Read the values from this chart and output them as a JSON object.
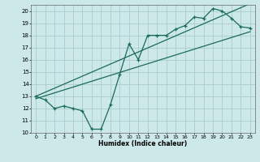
{
  "xlabel": "Humidex (Indice chaleur)",
  "bg_color": "#cce8e8",
  "grid_color": "#aacccc",
  "line_color": "#1a6b5a",
  "xlim": [
    -0.5,
    23.5
  ],
  "ylim": [
    10,
    20.5
  ],
  "yticks": [
    10,
    11,
    12,
    13,
    14,
    15,
    16,
    17,
    18,
    19,
    20
  ],
  "xticks": [
    0,
    1,
    2,
    3,
    4,
    5,
    6,
    7,
    8,
    9,
    10,
    11,
    12,
    13,
    14,
    15,
    16,
    17,
    18,
    19,
    20,
    21,
    22,
    23
  ],
  "line1_x": [
    0,
    1,
    2,
    3,
    4,
    5,
    6,
    7,
    8,
    9,
    10,
    11,
    12,
    13,
    14,
    15,
    16,
    17,
    18,
    19,
    20,
    21,
    22,
    23
  ],
  "line1_y": [
    13.0,
    12.7,
    12.0,
    12.2,
    12.0,
    11.8,
    10.3,
    10.3,
    12.3,
    14.8,
    17.3,
    16.0,
    18.0,
    18.0,
    18.0,
    18.5,
    18.8,
    19.5,
    19.4,
    20.2,
    20.0,
    19.4,
    18.7,
    18.6
  ],
  "line2_x": [
    0,
    23
  ],
  "line2_y": [
    12.8,
    18.3
  ],
  "line3_x": [
    0,
    23
  ],
  "line3_y": [
    13.0,
    20.6
  ]
}
